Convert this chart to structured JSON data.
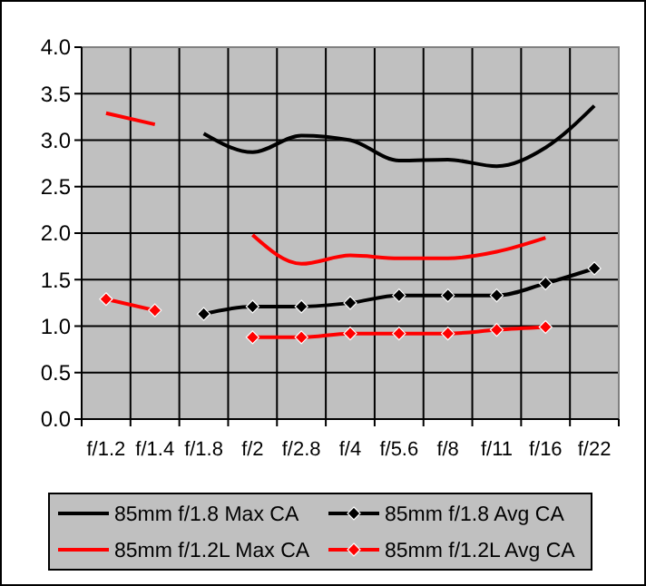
{
  "chart_data": {
    "type": "line",
    "categories": [
      "f/1.2",
      "f/1.4",
      "f/1.8",
      "f/2",
      "f/2.8",
      "f/4",
      "f/5.6",
      "f/8",
      "f/11",
      "f/16",
      "f/22"
    ],
    "ylim": [
      0,
      4
    ],
    "yticks": [
      {
        "value": 0,
        "label": "0.0"
      },
      {
        "value": 0.5,
        "label": "0.5"
      },
      {
        "value": 1,
        "label": "1.0"
      },
      {
        "value": 1.5,
        "label": "1.5"
      },
      {
        "value": 2,
        "label": "2.0"
      },
      {
        "value": 2.5,
        "label": "2.5"
      },
      {
        "value": 3,
        "label": "3.0"
      },
      {
        "value": 3.5,
        "label": "3.5"
      },
      {
        "value": 4,
        "label": "4.0"
      }
    ],
    "grid": true,
    "legend": "bottom",
    "line_style": "solid",
    "series": [
      {
        "name": "85mm f/1.8 Max CA",
        "color": "#000000",
        "marker": "none",
        "values": [
          null,
          null,
          3.07,
          2.87,
          3.05,
          3.0,
          2.78,
          2.79,
          2.72,
          2.92,
          3.37
        ]
      },
      {
        "name": "85mm f/1.8 Avg CA",
        "color": "#000000",
        "marker": "diamond",
        "values": [
          null,
          null,
          1.13,
          1.21,
          1.21,
          1.25,
          1.33,
          1.33,
          1.33,
          1.46,
          1.62
        ]
      },
      {
        "name": "85mm f/1.2L Max CA",
        "color": "#ff0000",
        "marker": "none",
        "values": [
          3.29,
          3.17,
          null,
          1.98,
          1.67,
          1.76,
          1.73,
          1.73,
          1.8,
          1.95,
          null
        ]
      },
      {
        "name": "85mm f/1.2L Avg CA",
        "color": "#ff0000",
        "marker": "diamond",
        "values": [
          1.29,
          1.17,
          null,
          0.88,
          0.88,
          0.92,
          0.92,
          0.92,
          0.96,
          0.99,
          null
        ]
      }
    ]
  }
}
